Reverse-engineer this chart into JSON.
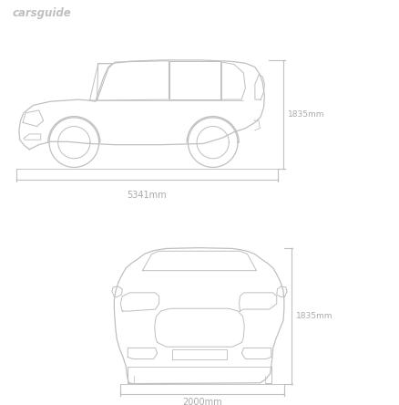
{
  "background_color": "#ffffff",
  "line_color": "#c0c0c0",
  "text_color": "#aaaaaa",
  "brand_color": "#c0c0c0",
  "brand_text": "carsguide",
  "dimension_label_height": "1835mm",
  "dimension_label_length": "5341mm",
  "dimension_label_width": "2000mm",
  "dimension_label_height2": "1835mm"
}
